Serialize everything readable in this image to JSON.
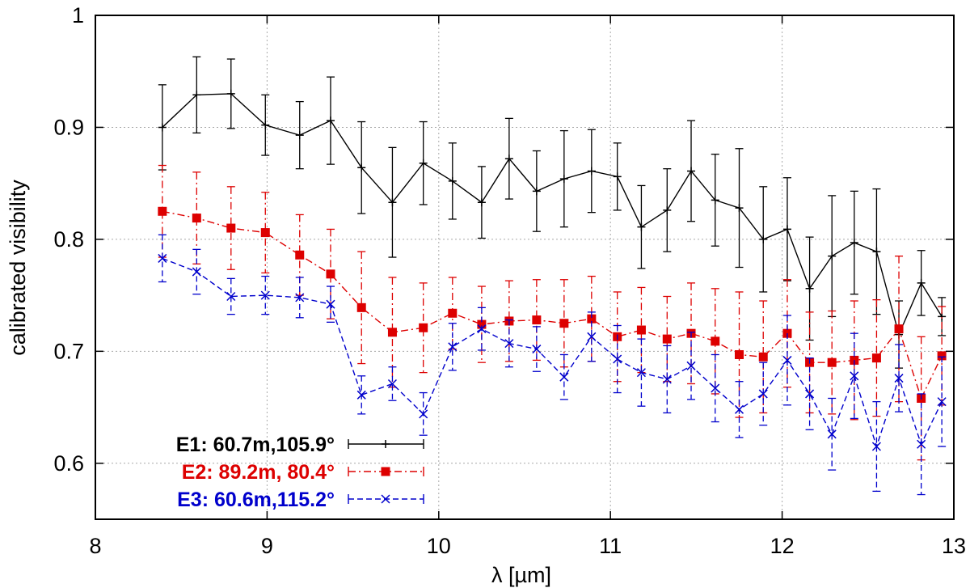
{
  "chart_data": {
    "type": "line",
    "xlabel": "λ [µm]",
    "ylabel": "calibrated visibility",
    "xlim": [
      8,
      13
    ],
    "ylim": [
      0.55,
      1.0
    ],
    "x_ticks": [
      "8",
      "9",
      "10",
      "11",
      "12",
      "13"
    ],
    "y_ticks": [
      "0.6",
      "0.7",
      "0.8",
      "0.9",
      "1"
    ],
    "grid": true,
    "legend_position": "bottom-left",
    "series": [
      {
        "name": "E1: 60.7m,105.9°",
        "color": "#000000",
        "line_style": "solid",
        "marker": "plus",
        "x": [
          8.39,
          8.59,
          8.79,
          8.99,
          9.19,
          9.37,
          9.55,
          9.73,
          9.91,
          10.08,
          10.25,
          10.41,
          10.57,
          10.73,
          10.89,
          11.04,
          11.18,
          11.33,
          11.47,
          11.61,
          11.75,
          11.89,
          12.03,
          12.16,
          12.29,
          12.42,
          12.55,
          12.68,
          12.81,
          12.93
        ],
        "y": [
          0.9,
          0.929,
          0.93,
          0.902,
          0.893,
          0.906,
          0.864,
          0.833,
          0.868,
          0.852,
          0.833,
          0.872,
          0.843,
          0.854,
          0.861,
          0.856,
          0.811,
          0.826,
          0.861,
          0.835,
          0.828,
          0.8,
          0.809,
          0.756,
          0.785,
          0.797,
          0.789,
          0.715,
          0.761,
          0.731
        ],
        "err": [
          0.038,
          0.034,
          0.031,
          0.027,
          0.03,
          0.039,
          0.041,
          0.049,
          0.037,
          0.034,
          0.032,
          0.036,
          0.036,
          0.043,
          0.037,
          0.03,
          0.037,
          0.037,
          0.045,
          0.041,
          0.053,
          0.047,
          0.046,
          0.046,
          0.054,
          0.046,
          0.056,
          0.03,
          0.029,
          0.017
        ]
      },
      {
        "name": "E2: 89.2m,  80.4°",
        "color": "#dd0000",
        "line_style": "dash-dot",
        "marker": "square",
        "x": [
          8.39,
          8.59,
          8.79,
          8.99,
          9.19,
          9.37,
          9.55,
          9.73,
          9.91,
          10.08,
          10.25,
          10.41,
          10.57,
          10.73,
          10.89,
          11.04,
          11.18,
          11.33,
          11.47,
          11.61,
          11.75,
          11.89,
          12.03,
          12.16,
          12.29,
          12.42,
          12.55,
          12.68,
          12.81,
          12.93
        ],
        "y": [
          0.825,
          0.819,
          0.81,
          0.806,
          0.786,
          0.769,
          0.739,
          0.717,
          0.721,
          0.734,
          0.724,
          0.727,
          0.728,
          0.725,
          0.729,
          0.713,
          0.719,
          0.711,
          0.716,
          0.709,
          0.697,
          0.695,
          0.716,
          0.69,
          0.69,
          0.692,
          0.694,
          0.72,
          0.658,
          0.696
        ],
        "err": [
          0.041,
          0.041,
          0.037,
          0.036,
          0.036,
          0.04,
          0.05,
          0.049,
          0.04,
          0.032,
          0.034,
          0.036,
          0.036,
          0.039,
          0.038,
          0.04,
          0.038,
          0.038,
          0.045,
          0.047,
          0.056,
          0.05,
          0.048,
          0.045,
          0.046,
          0.053,
          0.052,
          0.065,
          0.055,
          0.044
        ]
      },
      {
        "name": "E3: 60.6m,115.2°",
        "color": "#0000cc",
        "line_style": "dashed",
        "marker": "cross",
        "x": [
          8.39,
          8.59,
          8.79,
          8.99,
          9.19,
          9.37,
          9.55,
          9.73,
          9.91,
          10.08,
          10.25,
          10.41,
          10.57,
          10.73,
          10.89,
          11.04,
          11.18,
          11.33,
          11.47,
          11.61,
          11.75,
          11.89,
          12.03,
          12.16,
          12.29,
          12.42,
          12.55,
          12.68,
          12.81,
          12.93
        ],
        "y": [
          0.783,
          0.771,
          0.749,
          0.75,
          0.748,
          0.742,
          0.661,
          0.671,
          0.644,
          0.704,
          0.72,
          0.707,
          0.702,
          0.677,
          0.713,
          0.693,
          0.681,
          0.675,
          0.687,
          0.667,
          0.648,
          0.662,
          0.692,
          0.662,
          0.626,
          0.678,
          0.615,
          0.676,
          0.617,
          0.655
        ],
        "err": [
          0.021,
          0.02,
          0.016,
          0.017,
          0.018,
          0.016,
          0.017,
          0.015,
          0.019,
          0.021,
          0.019,
          0.021,
          0.02,
          0.02,
          0.022,
          0.03,
          0.03,
          0.03,
          0.03,
          0.03,
          0.025,
          0.028,
          0.04,
          0.032,
          0.032,
          0.038,
          0.04,
          0.03,
          0.045,
          0.04
        ]
      }
    ]
  }
}
